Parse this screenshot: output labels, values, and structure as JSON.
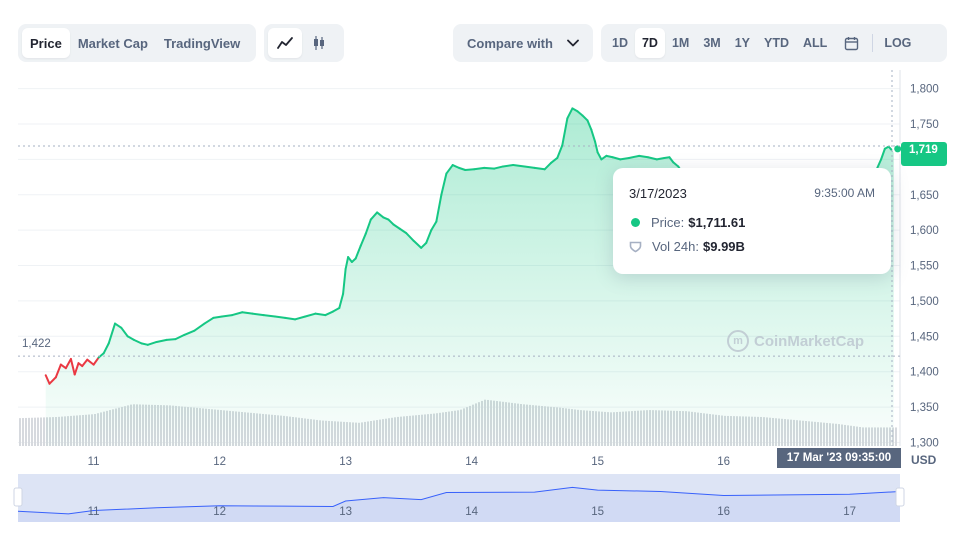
{
  "toolbar": {
    "view_tabs": [
      {
        "label": "Price",
        "active": true
      },
      {
        "label": "Market Cap",
        "active": false
      },
      {
        "label": "TradingView",
        "active": false
      }
    ],
    "chart_types": [
      {
        "icon": "line-chart-icon",
        "active": true
      },
      {
        "icon": "candlestick-icon",
        "active": false
      }
    ],
    "compare_label": "Compare with",
    "ranges": [
      {
        "label": "1D",
        "active": false
      },
      {
        "label": "7D",
        "active": true
      },
      {
        "label": "1M",
        "active": false
      },
      {
        "label": "3M",
        "active": false
      },
      {
        "label": "1Y",
        "active": false
      },
      {
        "label": "YTD",
        "active": false
      },
      {
        "label": "ALL",
        "active": false
      }
    ],
    "calendar_icon": "calendar-icon",
    "log_label": "LOG"
  },
  "tooltip": {
    "date": "3/17/2023",
    "time": "9:35:00 AM",
    "price_label": "Price:",
    "price_value": "$1,711.61",
    "vol_label": "Vol 24h:",
    "vol_value": "$9.99B"
  },
  "current_price_tag": "1,719",
  "crosshair_time_tag": "17 Mar '23  09:35:00",
  "start_price_label": "1,422",
  "currency_label": "USD",
  "watermark": "CoinMarketCap",
  "colors": {
    "up": "#16c784",
    "down": "#ea3943",
    "volume": "#d6d9de",
    "navigator_fill": "#dde4f5",
    "navigator_line": "#3861fb"
  },
  "chart_data": {
    "type": "line",
    "ylim": [
      1295,
      1815
    ],
    "yticks": [
      1300,
      1350,
      1400,
      1450,
      1500,
      1550,
      1600,
      1650,
      1700,
      1750,
      1800
    ],
    "ytick_labels": [
      "1,300",
      "1,350",
      "1,400",
      "1,450",
      "1,500",
      "1,550",
      "1,600",
      "1,650",
      "1,700",
      "1,750",
      "1,800"
    ],
    "xlim": [
      10.4,
      17.4
    ],
    "xticks": [
      11,
      12,
      13,
      14,
      15,
      16,
      17
    ],
    "xtick_labels": [
      "11",
      "12",
      "13",
      "14",
      "15",
      "16",
      "17"
    ],
    "baseline": 1422,
    "series": [
      {
        "x": [
          10.62,
          10.65,
          10.7,
          10.74,
          10.78,
          10.82,
          10.85,
          10.88,
          10.91,
          10.95,
          11.0,
          11.04,
          11.08,
          11.12,
          11.17,
          11.22,
          11.27,
          11.32,
          11.38,
          11.43,
          11.5,
          11.58,
          11.65,
          11.72,
          11.8,
          11.88,
          11.95,
          12.02,
          12.1,
          12.18,
          12.26,
          12.35,
          12.44,
          12.52,
          12.6,
          12.68,
          12.76,
          12.84,
          12.9,
          12.95,
          12.98,
          13.0,
          13.02,
          13.05,
          13.08,
          13.12,
          13.16,
          13.2,
          13.25,
          13.3,
          13.34,
          13.38,
          13.43,
          13.48,
          13.54,
          13.6,
          13.64,
          13.68,
          13.72,
          13.76,
          13.8,
          13.85,
          13.9,
          13.95,
          14.02,
          14.1,
          14.18,
          14.25,
          14.33,
          14.42,
          14.5,
          14.58,
          14.63,
          14.68,
          14.72,
          14.76,
          14.8,
          14.84,
          14.88,
          14.92,
          14.95,
          14.98,
          15.0,
          15.03,
          15.07,
          15.12,
          15.18,
          15.25,
          15.33,
          15.4,
          15.47,
          15.53,
          15.57,
          15.6,
          15.64,
          15.67,
          15.71,
          15.73,
          15.76,
          15.8,
          15.9,
          16.1,
          16.3,
          16.5,
          16.7,
          16.9,
          17.1,
          17.2,
          17.25,
          17.28,
          17.31,
          17.33,
          17.35
        ],
        "y": [
          1395,
          1383,
          1392,
          1410,
          1405,
          1418,
          1396,
          1412,
          1408,
          1417,
          1410,
          1420,
          1426,
          1440,
          1468,
          1462,
          1450,
          1445,
          1440,
          1438,
          1442,
          1445,
          1446,
          1452,
          1458,
          1468,
          1476,
          1478,
          1480,
          1484,
          1482,
          1480,
          1478,
          1476,
          1474,
          1478,
          1482,
          1480,
          1485,
          1490,
          1510,
          1545,
          1562,
          1555,
          1560,
          1578,
          1595,
          1615,
          1625,
          1618,
          1615,
          1608,
          1602,
          1596,
          1585,
          1575,
          1582,
          1600,
          1612,
          1650,
          1680,
          1692,
          1688,
          1685,
          1686,
          1688,
          1687,
          1690,
          1692,
          1690,
          1688,
          1686,
          1695,
          1702,
          1720,
          1758,
          1772,
          1768,
          1762,
          1755,
          1742,
          1725,
          1710,
          1700,
          1705,
          1703,
          1700,
          1702,
          1705,
          1703,
          1700,
          1702,
          1703,
          1696,
          1690,
          1682,
          1678,
          1685,
          1672,
          1665,
          1660,
          1658,
          1656,
          1658,
          1660,
          1662,
          1665,
          1680,
          1700,
          1715,
          1718,
          1714,
          1712
        ]
      }
    ],
    "volume": {
      "x": [
        10.4,
        10.7,
        11.0,
        11.3,
        11.6,
        11.9,
        12.2,
        12.5,
        12.8,
        13.1,
        13.4,
        13.7,
        13.9,
        14.1,
        14.4,
        14.7,
        14.85,
        15.1,
        15.4,
        15.7,
        16.0,
        16.3,
        16.6,
        16.9,
        17.1,
        17.4
      ],
      "y": [
        0.48,
        0.5,
        0.55,
        0.72,
        0.7,
        0.64,
        0.58,
        0.52,
        0.44,
        0.4,
        0.5,
        0.56,
        0.62,
        0.8,
        0.72,
        0.66,
        0.62,
        0.58,
        0.62,
        0.6,
        0.52,
        0.5,
        0.44,
        0.38,
        0.32,
        0.32
      ]
    },
    "navigator": {
      "x": [
        10.4,
        10.8,
        11.0,
        11.5,
        12.0,
        12.5,
        12.9,
        13.0,
        13.3,
        13.6,
        13.8,
        14.5,
        14.8,
        15.0,
        15.5,
        16.0,
        16.5,
        17.0,
        17.4
      ],
      "y": [
        0.2,
        0.12,
        0.22,
        0.3,
        0.36,
        0.35,
        0.34,
        0.5,
        0.6,
        0.54,
        0.75,
        0.76,
        0.9,
        0.82,
        0.78,
        0.66,
        0.68,
        0.7,
        0.78
      ]
    }
  }
}
